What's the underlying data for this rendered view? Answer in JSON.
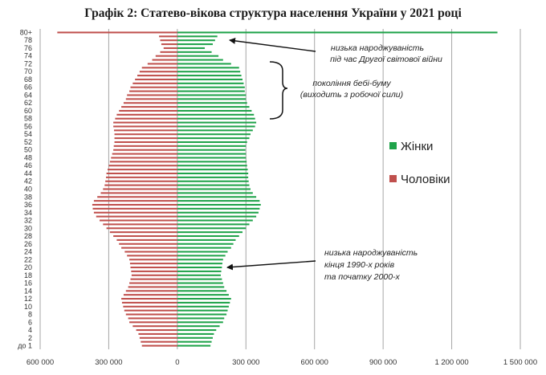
{
  "chart_data": {
    "type": "bar",
    "orientation": "horizontal-population-pyramid",
    "title": "Графік 2: Статево-вікова структура населення України у 2021 році",
    "xlim": [
      -600000,
      1500000
    ],
    "x_ticks": [
      -600000,
      -300000,
      0,
      300000,
      600000,
      900000,
      1200000,
      1500000
    ],
    "x_tick_labels": [
      "600 000",
      "300 000",
      "0",
      "300 000",
      "600 000",
      "900 000",
      "1 200 000",
      "1 500 000"
    ],
    "grid": "vertical",
    "legend_position": "right",
    "series": [
      {
        "name": "Жінки",
        "color": "#1fa34a",
        "values": [
          145000,
          150000,
          155000,
          160000,
          170000,
          185000,
          200000,
          205000,
          215000,
          220000,
          225000,
          230000,
          235000,
          225000,
          215000,
          205000,
          200000,
          195000,
          190000,
          192000,
          195000,
          197000,
          200000,
          210000,
          220000,
          235000,
          245000,
          255000,
          270000,
          285000,
          300000,
          315000,
          330000,
          345000,
          355000,
          360000,
          365000,
          360000,
          345000,
          330000,
          320000,
          315000,
          312000,
          310000,
          310000,
          308000,
          305000,
          303000,
          300000,
          300000,
          298000,
          300000,
          305000,
          315000,
          320000,
          330000,
          340000,
          345000,
          340000,
          335000,
          325000,
          315000,
          305000,
          300000,
          300000,
          295000,
          295000,
          290000,
          285000,
          280000,
          275000,
          270000,
          235000,
          200000,
          180000,
          150000,
          120000,
          155000,
          165000,
          175000,
          1400000
        ]
      },
      {
        "name": "Чоловіки",
        "color": "#c0504d",
        "values": [
          155000,
          160000,
          165000,
          170000,
          180000,
          195000,
          210000,
          215000,
          225000,
          232000,
          237000,
          242000,
          245000,
          235000,
          225000,
          215000,
          210000,
          205000,
          200000,
          202000,
          205000,
          207000,
          210000,
          220000,
          230000,
          245000,
          255000,
          265000,
          280000,
          295000,
          310000,
          325000,
          340000,
          355000,
          365000,
          370000,
          372000,
          365000,
          350000,
          335000,
          325000,
          318000,
          315000,
          312000,
          310000,
          305000,
          300000,
          295000,
          290000,
          285000,
          280000,
          278000,
          275000,
          275000,
          275000,
          277000,
          280000,
          280000,
          272000,
          265000,
          255000,
          245000,
          235000,
          225000,
          220000,
          210000,
          205000,
          195000,
          185000,
          175000,
          165000,
          155000,
          130000,
          110000,
          95000,
          75000,
          60000,
          70000,
          75000,
          80000,
          525000
        ]
      }
    ],
    "age_labels": [
      "до 1",
      "2",
      "4",
      "6",
      "8",
      "10",
      "12",
      "14",
      "16",
      "18",
      "20",
      "22",
      "24",
      "26",
      "28",
      "30",
      "32",
      "34",
      "36",
      "38",
      "40",
      "42",
      "44",
      "46",
      "48",
      "50",
      "52",
      "54",
      "56",
      "58",
      "60",
      "62",
      "64",
      "66",
      "68",
      "70",
      "72",
      "74",
      "76",
      "78",
      "80+"
    ],
    "annotations": [
      {
        "text1": "низька народжуваність",
        "text2": "під час Другої світової війни"
      },
      {
        "text1": "покоління бебі-буму",
        "text2": "(виходить з робочої сили)"
      },
      {
        "text1": "низька народжуваність",
        "text2": "кінця 1990-х років",
        "text3": "та початку 2000-х"
      }
    ]
  }
}
